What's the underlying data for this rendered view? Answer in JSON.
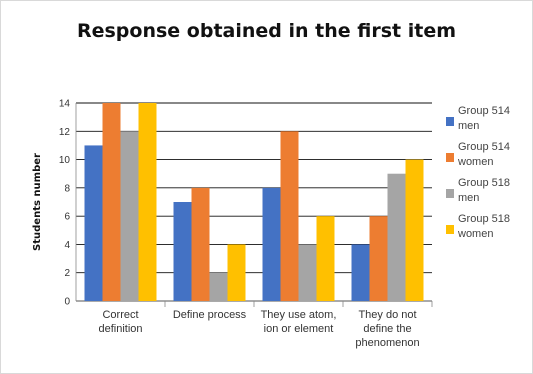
{
  "chart_data": {
    "type": "bar",
    "title": "Response obtained in the first item",
    "ylabel": "Students number",
    "xlabel": "",
    "ylim": [
      0,
      14
    ],
    "yticks": [
      0,
      2,
      4,
      6,
      8,
      10,
      12,
      14
    ],
    "grid": true,
    "legend_position": "right",
    "categories": [
      [
        "Correct",
        "definition"
      ],
      [
        "Define process"
      ],
      [
        "They use atom,",
        "ion or element"
      ],
      [
        "They do not",
        "define the",
        "phenomenon"
      ]
    ],
    "series": [
      {
        "name": [
          "Group 514",
          "men"
        ],
        "color": "#4472c4",
        "values": [
          11,
          7,
          8,
          4
        ]
      },
      {
        "name": [
          "Group 514",
          "women"
        ],
        "color": "#ed7d31",
        "values": [
          14,
          8,
          12,
          6
        ]
      },
      {
        "name": [
          "Group 518",
          "men"
        ],
        "color": "#a5a5a5",
        "values": [
          12,
          2,
          4,
          9
        ]
      },
      {
        "name": [
          "Group 518",
          "women"
        ],
        "color": "#ffc000",
        "values": [
          14,
          4,
          6,
          10
        ]
      }
    ]
  }
}
